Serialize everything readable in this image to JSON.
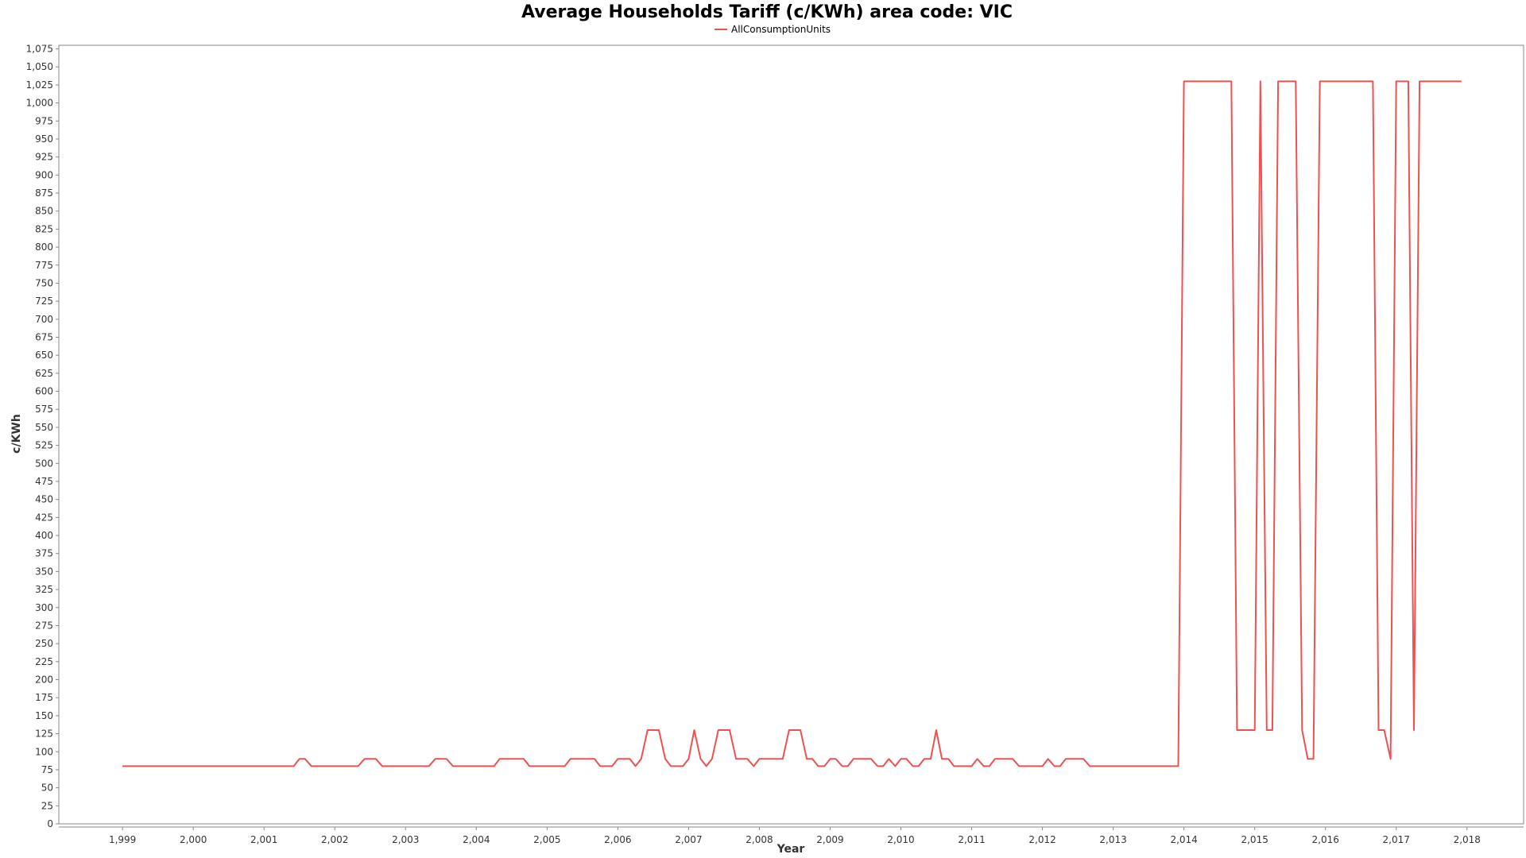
{
  "chart_data": {
    "type": "line",
    "title": "Average Households Tariff (c/KWh) area code: VIC",
    "xlabel": "Year",
    "ylabel": "c/KWh",
    "legend": {
      "position": "top-center"
    },
    "xlim": [
      1998.1,
      2018.8
    ],
    "ylim": [
      0,
      1080
    ],
    "x_ticks": [
      1999,
      2000,
      2001,
      2002,
      2003,
      2004,
      2005,
      2006,
      2007,
      2008,
      2009,
      2010,
      2011,
      2012,
      2013,
      2014,
      2015,
      2016,
      2017,
      2018
    ],
    "x_tick_labels": [
      "1,999",
      "2,000",
      "2,001",
      "2,002",
      "2,003",
      "2,004",
      "2,005",
      "2,006",
      "2,007",
      "2,008",
      "2,009",
      "2,010",
      "2,011",
      "2,012",
      "2,013",
      "2,014",
      "2,015",
      "2,016",
      "2,017",
      "2,018"
    ],
    "y_ticks": [
      0,
      25,
      50,
      75,
      100,
      125,
      150,
      175,
      200,
      225,
      250,
      275,
      300,
      325,
      350,
      375,
      400,
      425,
      450,
      475,
      500,
      525,
      550,
      575,
      600,
      625,
      650,
      675,
      700,
      725,
      750,
      775,
      800,
      825,
      850,
      875,
      900,
      925,
      950,
      975,
      1000,
      1025,
      1050,
      1075
    ],
    "y_tick_labels": [
      "0",
      "25",
      "50",
      "75",
      "100",
      "125",
      "150",
      "175",
      "200",
      "225",
      "250",
      "275",
      "300",
      "325",
      "350",
      "375",
      "400",
      "425",
      "450",
      "475",
      "500",
      "525",
      "550",
      "575",
      "600",
      "625",
      "650",
      "675",
      "700",
      "725",
      "750",
      "775",
      "800",
      "825",
      "850",
      "875",
      "900",
      "925",
      "950",
      "975",
      "1,000",
      "1,025",
      "1,050",
      "1,075"
    ],
    "grid": false,
    "series": [
      {
        "name": "AllConsumptionUnits",
        "color": "#f05050",
        "x": [
          1999.0,
          2001.42,
          2001.5,
          2001.58,
          2001.67,
          2002.33,
          2002.42,
          2002.58,
          2002.67,
          2003.33,
          2003.42,
          2003.58,
          2003.67,
          2004.25,
          2004.33,
          2004.67,
          2004.75,
          2005.25,
          2005.33,
          2005.67,
          2005.75,
          2005.92,
          2006.0,
          2006.17,
          2006.25,
          2006.33,
          2006.42,
          2006.58,
          2006.67,
          2006.75,
          2006.92,
          2007.0,
          2007.08,
          2007.17,
          2007.25,
          2007.33,
          2007.42,
          2007.58,
          2007.67,
          2007.83,
          2007.92,
          2008.0,
          2008.33,
          2008.42,
          2008.58,
          2008.67,
          2008.75,
          2008.83,
          2008.92,
          2009.0,
          2009.08,
          2009.17,
          2009.25,
          2009.33,
          2009.42,
          2009.58,
          2009.67,
          2009.75,
          2009.83,
          2009.92,
          2010.0,
          2010.08,
          2010.17,
          2010.25,
          2010.33,
          2010.42,
          2010.5,
          2010.58,
          2010.67,
          2010.75,
          2011.0,
          2011.08,
          2011.17,
          2011.25,
          2011.33,
          2011.58,
          2011.67,
          2012.0,
          2012.08,
          2012.17,
          2012.25,
          2012.33,
          2012.58,
          2012.67,
          2013.92,
          2014.0,
          2014.67,
          2014.75,
          2015.0,
          2015.08,
          2015.17,
          2015.25,
          2015.33,
          2015.58,
          2015.67,
          2015.75,
          2015.83,
          2015.92,
          2016.67,
          2016.75,
          2016.83,
          2016.92,
          2017.0,
          2017.17,
          2017.25,
          2017.33,
          2017.92
        ],
        "values": [
          80,
          80,
          90,
          90,
          80,
          80,
          90,
          90,
          80,
          80,
          90,
          90,
          80,
          80,
          90,
          90,
          80,
          80,
          90,
          90,
          80,
          80,
          90,
          90,
          80,
          90,
          130,
          130,
          90,
          80,
          80,
          90,
          130,
          90,
          80,
          90,
          130,
          130,
          90,
          90,
          80,
          90,
          90,
          130,
          130,
          90,
          90,
          80,
          80,
          90,
          90,
          80,
          80,
          90,
          90,
          90,
          80,
          80,
          90,
          80,
          90,
          90,
          80,
          80,
          90,
          90,
          130,
          90,
          90,
          80,
          80,
          90,
          80,
          80,
          90,
          90,
          80,
          80,
          90,
          80,
          80,
          90,
          90,
          80,
          80,
          1030,
          1030,
          130,
          130,
          1030,
          130,
          130,
          1030,
          1030,
          130,
          90,
          90,
          1030,
          1030,
          130,
          130,
          90,
          1030,
          1030,
          130,
          1030,
          1030
        ]
      }
    ]
  }
}
